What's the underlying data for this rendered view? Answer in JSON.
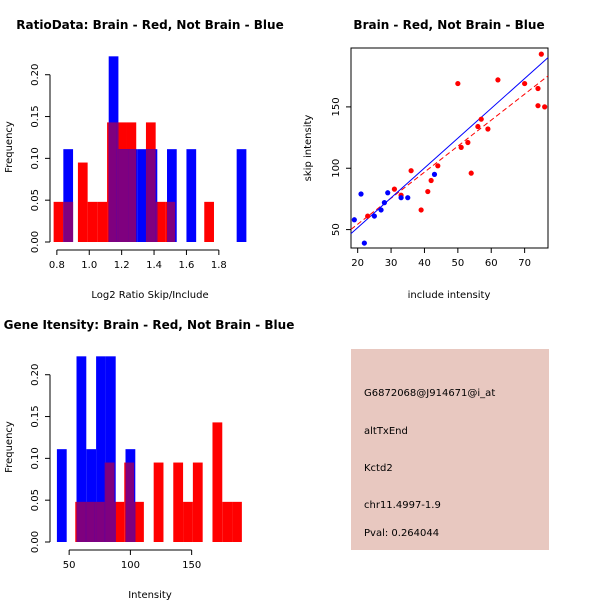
{
  "colors": {
    "red": "#ff0000",
    "blue": "#0000ff",
    "overlap": "#7f007f",
    "panel_bg": "#e8c8c0",
    "pval_text": "#8b0000"
  },
  "chart_data": [
    {
      "type": "bar",
      "id": "ratio",
      "title": "RatioData: Brain - Red, Not Brain - Blue",
      "xlabel": "Log2 Ratio Skip/Include",
      "ylabel": "Frequency",
      "xlim": [
        0.77,
        1.98
      ],
      "ylim": [
        0,
        0.22
      ],
      "xticks": [
        0.8,
        1.0,
        1.2,
        1.4,
        1.6,
        1.8
      ],
      "xtick_labels": [
        "0.8",
        "1.0",
        "1.2",
        "1.4",
        "1.6",
        "1.8"
      ],
      "yticks": [
        0.0,
        0.05,
        0.1,
        0.15,
        0.2
      ],
      "ytick_labels": [
        "0.00",
        "0.05",
        "0.10",
        "0.15",
        "0.20"
      ],
      "series": [
        {
          "name": "Brain",
          "color": "red",
          "bins": [
            {
              "x0": 0.78,
              "x1": 0.84,
              "value": 0.048
            },
            {
              "x0": 0.84,
              "x1": 0.9,
              "value": 0.048
            },
            {
              "x0": 0.93,
              "x1": 0.99,
              "value": 0.095
            },
            {
              "x0": 0.99,
              "x1": 1.05,
              "value": 0.048
            },
            {
              "x0": 1.05,
              "x1": 1.11,
              "value": 0.048
            },
            {
              "x0": 1.11,
              "x1": 1.17,
              "value": 0.143
            },
            {
              "x0": 1.17,
              "x1": 1.23,
              "value": 0.143
            },
            {
              "x0": 1.23,
              "x1": 1.29,
              "value": 0.143
            },
            {
              "x0": 1.35,
              "x1": 1.41,
              "value": 0.143
            },
            {
              "x0": 1.41,
              "x1": 1.47,
              "value": 0.048
            },
            {
              "x0": 1.47,
              "x1": 1.53,
              "value": 0.048
            },
            {
              "x0": 1.71,
              "x1": 1.77,
              "value": 0.048
            }
          ]
        },
        {
          "name": "Not Brain",
          "color": "blue",
          "bins": [
            {
              "x0": 0.84,
              "x1": 0.9,
              "value": 0.111
            },
            {
              "x0": 1.12,
              "x1": 1.18,
              "value": 0.222
            },
            {
              "x0": 1.18,
              "x1": 1.24,
              "value": 0.111
            },
            {
              "x0": 1.24,
              "x1": 1.3,
              "value": 0.111
            },
            {
              "x0": 1.3,
              "x1": 1.36,
              "value": 0.111
            },
            {
              "x0": 1.36,
              "x1": 1.42,
              "value": 0.111
            },
            {
              "x0": 1.48,
              "x1": 1.54,
              "value": 0.111
            },
            {
              "x0": 1.6,
              "x1": 1.66,
              "value": 0.111
            },
            {
              "x0": 1.91,
              "x1": 1.97,
              "value": 0.111
            }
          ]
        }
      ]
    },
    {
      "type": "scatter",
      "id": "scatter",
      "title": "Brain - Red, Not Brain - Blue",
      "xlabel": "include intensity",
      "ylabel": "skip intensity",
      "xlim": [
        18,
        77
      ],
      "ylim": [
        35,
        198
      ],
      "xticks": [
        20,
        30,
        40,
        50,
        60,
        70
      ],
      "yticks": [
        50,
        100,
        150
      ],
      "series": [
        {
          "name": "Brain",
          "color": "red",
          "points": [
            [
              23,
              61
            ],
            [
              31,
              83
            ],
            [
              33,
              78
            ],
            [
              36,
              98
            ],
            [
              39,
              66
            ],
            [
              41,
              81
            ],
            [
              42,
              90
            ],
            [
              44,
              102
            ],
            [
              50,
              169
            ],
            [
              51,
              117
            ],
            [
              53,
              121
            ],
            [
              54,
              96
            ],
            [
              56,
              134
            ],
            [
              57,
              140
            ],
            [
              59,
              132
            ],
            [
              62,
              172
            ],
            [
              70,
              169
            ],
            [
              74,
              165
            ],
            [
              74,
              151
            ],
            [
              75,
              193
            ],
            [
              76,
              150
            ]
          ],
          "fit": {
            "intercept": 12.0,
            "slope": 2.12
          }
        },
        {
          "name": "Not Brain",
          "color": "blue",
          "points": [
            [
              19,
              58
            ],
            [
              21,
              79
            ],
            [
              22,
              39
            ],
            [
              25,
              61
            ],
            [
              27,
              66
            ],
            [
              28,
              72
            ],
            [
              29,
              80
            ],
            [
              33,
              76
            ],
            [
              35,
              76
            ],
            [
              43,
              95
            ]
          ],
          "fit": {
            "intercept": 3.0,
            "slope": 2.43
          }
        }
      ]
    },
    {
      "type": "bar",
      "id": "intensity",
      "title": "Gene Itensity: Brain - Red, Not Brain - Blue",
      "xlabel": "Intensity",
      "ylabel": "Frequency",
      "xlim": [
        36,
        196
      ],
      "ylim": [
        0,
        0.22
      ],
      "xticks": [
        50,
        100,
        150
      ],
      "xtick_labels": [
        "50",
        "100",
        "150"
      ],
      "yticks": [
        0.0,
        0.05,
        0.1,
        0.15,
        0.2
      ],
      "ytick_labels": [
        "0.00",
        "0.05",
        "0.10",
        "0.15",
        "0.20"
      ],
      "series": [
        {
          "name": "Brain",
          "color": "red",
          "bins": [
            {
              "x0": 55,
              "x1": 63,
              "value": 0.048
            },
            {
              "x0": 63,
              "x1": 71,
              "value": 0.048
            },
            {
              "x0": 71,
              "x1": 79,
              "value": 0.048
            },
            {
              "x0": 79,
              "x1": 87,
              "value": 0.095
            },
            {
              "x0": 87,
              "x1": 95,
              "value": 0.048
            },
            {
              "x0": 95,
              "x1": 103,
              "value": 0.095
            },
            {
              "x0": 103,
              "x1": 111,
              "value": 0.048
            },
            {
              "x0": 119,
              "x1": 127,
              "value": 0.095
            },
            {
              "x0": 135,
              "x1": 143,
              "value": 0.095
            },
            {
              "x0": 143,
              "x1": 151,
              "value": 0.048
            },
            {
              "x0": 151,
              "x1": 159,
              "value": 0.095
            },
            {
              "x0": 167,
              "x1": 175,
              "value": 0.143
            },
            {
              "x0": 175,
              "x1": 183,
              "value": 0.048
            },
            {
              "x0": 183,
              "x1": 191,
              "value": 0.048
            }
          ]
        },
        {
          "name": "Not Brain",
          "color": "blue",
          "bins": [
            {
              "x0": 40,
              "x1": 48,
              "value": 0.111
            },
            {
              "x0": 56,
              "x1": 64,
              "value": 0.222
            },
            {
              "x0": 64,
              "x1": 72,
              "value": 0.111
            },
            {
              "x0": 72,
              "x1": 80,
              "value": 0.222
            },
            {
              "x0": 80,
              "x1": 88,
              "value": 0.222
            },
            {
              "x0": 96,
              "x1": 104,
              "value": 0.111
            }
          ]
        }
      ]
    }
  ],
  "info_panel": {
    "probe_id": "G6872068@J914671@i_at",
    "event_type": "altTxEnd",
    "gene": "Kctd2",
    "location": "chr11.4997-1.9",
    "pval": "Pval: 0.264044"
  }
}
